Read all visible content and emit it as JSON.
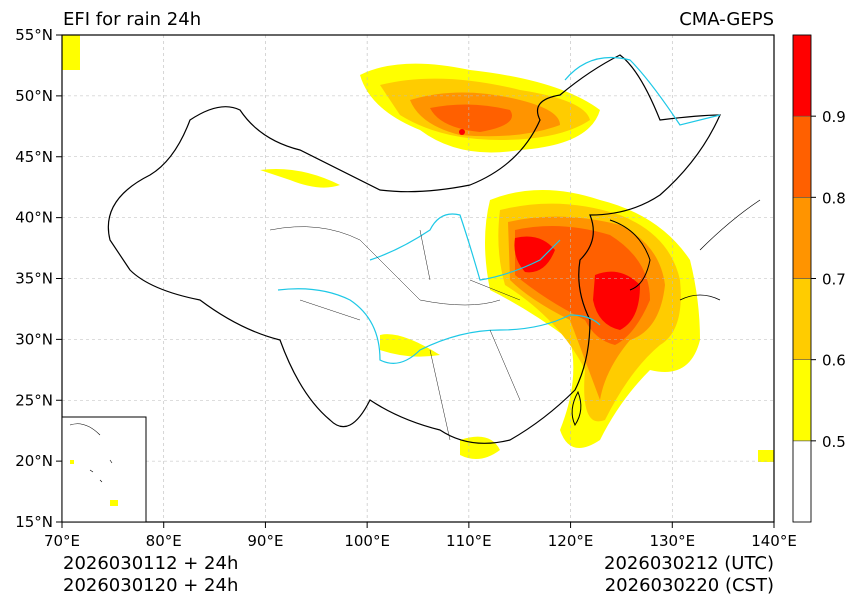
{
  "title_left": "EFI for rain 24h",
  "title_right": "CMA-GEPS",
  "footer": {
    "left_line1": "2026030112 + 24h",
    "left_line2": "2026030120 + 24h",
    "right_line1": "2026030212 (UTC)",
    "right_line2": "2026030220 (CST)"
  },
  "axes": {
    "lon_ticks": [
      "70°E",
      "80°E",
      "90°E",
      "100°E",
      "110°E",
      "120°E",
      "130°E",
      "140°E"
    ],
    "lat_ticks": [
      "15°N",
      "20°N",
      "25°N",
      "30°N",
      "35°N",
      "40°N",
      "45°N",
      "50°N",
      "55°N"
    ],
    "lon_range": [
      70,
      140
    ],
    "lat_range": [
      15,
      55
    ]
  },
  "colorbar": {
    "levels": [
      0.4,
      0.5,
      0.6,
      0.7,
      0.8,
      0.9,
      1.0
    ],
    "labels": [
      "0.5",
      "0.6",
      "0.7",
      "0.8",
      "0.9"
    ],
    "colors": [
      "#ffffff",
      "#ffff00",
      "#ffcc00",
      "#ff9400",
      "#ff6000",
      "#ff0000"
    ]
  }
}
